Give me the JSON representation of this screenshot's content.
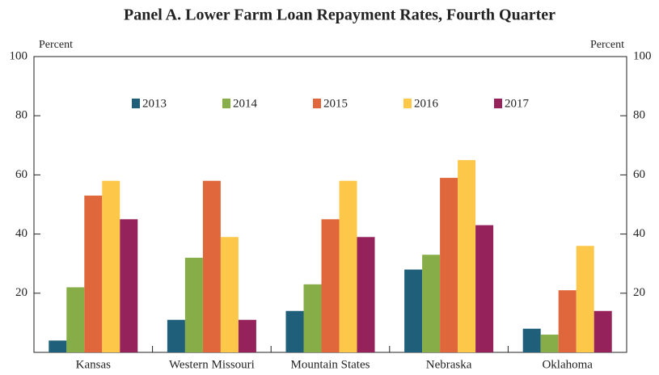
{
  "chart_data": {
    "type": "bar",
    "title": "Panel A. Lower Farm Loan Repayment Rates, Fourth Quarter",
    "y_label": "Percent",
    "y2_label": "Percent",
    "categories": [
      "Kansas",
      "Western Missouri",
      "Mountain States",
      "Nebraska",
      "Oklahoma"
    ],
    "series": [
      {
        "name": "2013",
        "color": "#1f5f7a",
        "values": [
          4,
          11,
          14,
          28,
          8
        ]
      },
      {
        "name": "2014",
        "color": "#86ad47",
        "values": [
          22,
          32,
          23,
          33,
          6
        ]
      },
      {
        "name": "2015",
        "color": "#e0673b",
        "values": [
          53,
          58,
          45,
          59,
          21
        ]
      },
      {
        "name": "2016",
        "color": "#fdc84a",
        "values": [
          58,
          39,
          58,
          65,
          36
        ]
      },
      {
        "name": "2017",
        "color": "#96225c",
        "values": [
          45,
          11,
          39,
          43,
          14
        ]
      }
    ],
    "ylim": [
      0,
      100
    ],
    "yticks": [
      20,
      40,
      60,
      80,
      100
    ],
    "y2lim": [
      0,
      100
    ],
    "y2ticks": [
      20,
      40,
      60,
      80,
      100
    ],
    "legend": "top"
  }
}
